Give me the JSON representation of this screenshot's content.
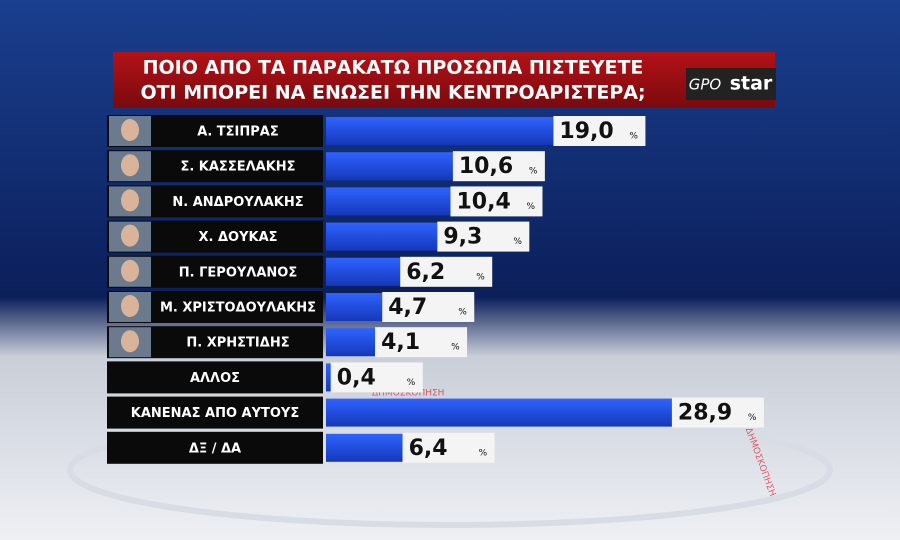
{
  "chart_data": {
    "type": "bar",
    "title": [
      "ΠΟΙΟ ΑΠΟ ΤΑ ΠΑΡΑΚΑΤΩ ΠΡΟΣΩΠΑ ΠΙΣΤΕΥΕΤΕ",
      "ΟΤΙ ΜΠΟΡΕΙ ΝΑ ΕΝΩΣΕΙ ΤΗΝ ΚΕΝΤΡΟΑΡΙΣΤΕΡΑ;"
    ],
    "logo": [
      "GPO",
      "star"
    ],
    "watermark": "ΔΗΜΟΣΚΟΠΗΣΗ",
    "categories": [
      "Α. ΤΣΙΠΡΑΣ",
      "Σ. ΚΑΣΣΕΛΑΚΗΣ",
      "Ν. ΑΝΔΡΟΥΛΑΚΗΣ",
      "Χ. ΔΟΥΚΑΣ",
      "Π. ΓΕΡΟΥΛΑΝΟΣ",
      "Μ. ΧΡΙΣΤΟΔΟΥΛΑΚΗΣ",
      "Π. ΧΡΗΣΤΙΔΗΣ",
      "ΑΛΛΟΣ",
      "ΚΑΝΕΝΑΣ ΑΠΟ ΑΥΤΟΥΣ",
      "ΔΞ / ΔΑ"
    ],
    "photos": [
      true,
      true,
      true,
      true,
      true,
      true,
      true,
      false,
      false,
      false
    ],
    "values": [
      19.0,
      10.6,
      10.4,
      9.3,
      6.2,
      4.7,
      4.1,
      0.4,
      28.9,
      6.4
    ],
    "value_labels": [
      "19,0",
      "10,6",
      "10,4",
      "9,3",
      "6,2",
      "4,7",
      "4,1",
      "0,4",
      "28,9",
      "6,4"
    ],
    "unit": "%",
    "color": "#1e4fe6"
  }
}
